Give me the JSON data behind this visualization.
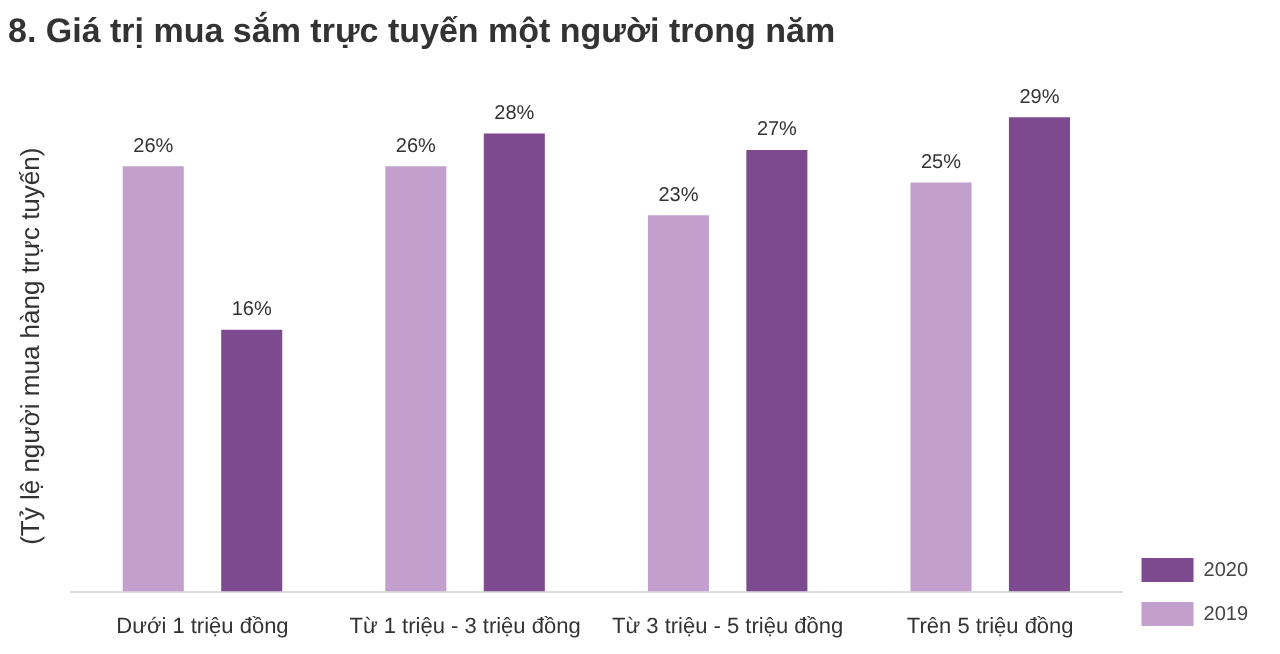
{
  "chart_data": {
    "type": "bar",
    "title": "8. Giá trị mua sắm trực tuyến một người trong năm",
    "ylabel": "(Tỷ lệ người mua hàng trực tuyến)",
    "categories": [
      "Dưới 1 triệu đồng",
      "Từ 1 triệu - 3 triệu đồng",
      "Từ 3 triệu - 5 triệu đồng",
      "Trên 5 triệu đồng"
    ],
    "series": [
      {
        "name": "2019",
        "color": "#c29fcd",
        "values": [
          26,
          26,
          23,
          25
        ],
        "value_labels": [
          "26%",
          "26%",
          "23%",
          "25%"
        ]
      },
      {
        "name": "2020",
        "color": "#7d4a8f",
        "values": [
          16,
          28,
          27,
          29
        ],
        "value_labels": [
          "16%",
          "28%",
          "27%",
          "29%"
        ]
      }
    ],
    "legend": "bottom right",
    "grid": false,
    "tick_labels": "x"
  }
}
